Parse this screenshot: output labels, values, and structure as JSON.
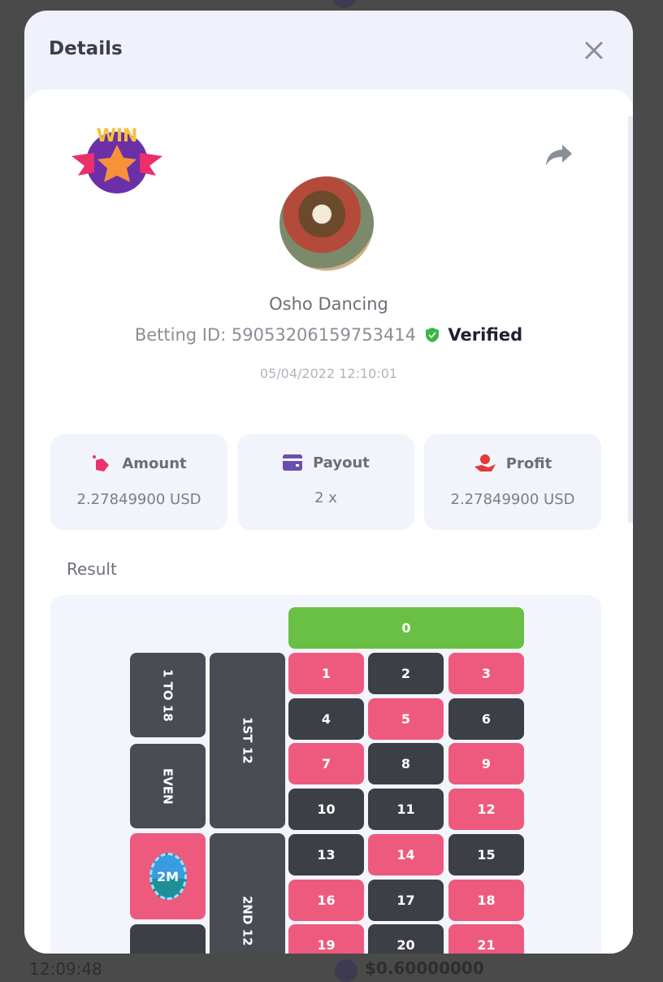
{
  "background": {
    "time": "12:09:48",
    "amount": "$0.60000000"
  },
  "modal": {
    "title": "Details",
    "game_name": "Osho Dancing",
    "betting_id_label": "Betting ID: 59053206159753414",
    "verified": "Verified",
    "date": "05/04/2022 12:10:01",
    "stats": [
      {
        "label": "Amount",
        "value": "2.27849900 USD",
        "icon": "money-bag-icon",
        "color": "#e8336e"
      },
      {
        "label": "Payout",
        "value": "2 x",
        "icon": "wallet-icon",
        "color": "#6a4fb0"
      },
      {
        "label": "Profit",
        "value": "2.27849900 USD",
        "icon": "hand-coin-icon",
        "color": "#e23a3a"
      }
    ],
    "result_label": "Result",
    "board": {
      "zero": "0",
      "numbers": [
        "1",
        "2",
        "3",
        "4",
        "5",
        "6",
        "7",
        "8",
        "9",
        "10",
        "11",
        "12",
        "13",
        "14",
        "15",
        "16",
        "17",
        "18",
        "19",
        "20",
        "21"
      ],
      "red_numbers": [
        1,
        3,
        5,
        7,
        9,
        12,
        14,
        16,
        18,
        19,
        21
      ],
      "outside": [
        "1 TO 18",
        "EVEN"
      ],
      "dozens": [
        "1ST 12",
        "2ND 12"
      ],
      "chip": "2M",
      "colors": {
        "red": "#ee5a7e",
        "black": "#3d3f46",
        "green": "#6abf45"
      }
    }
  }
}
